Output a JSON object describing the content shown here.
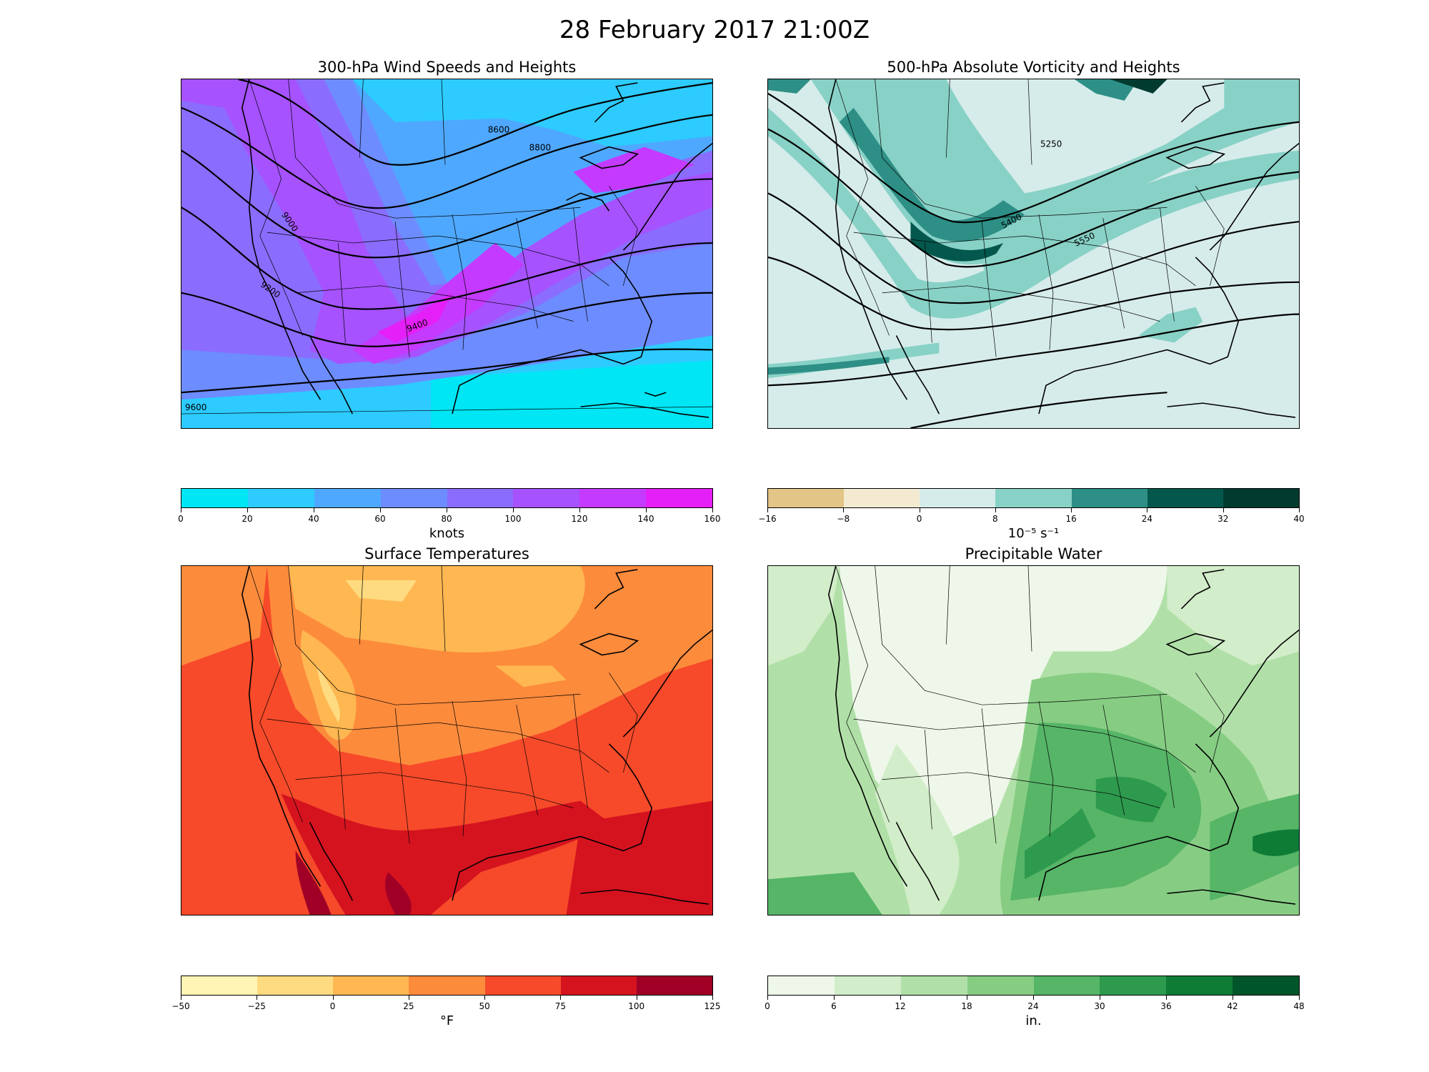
{
  "title": "28 February 2017 21:00Z",
  "panels": [
    {
      "title": "300-hPa Wind Speeds and Heights",
      "units": "knots",
      "ticks": [
        "0",
        "20",
        "40",
        "60",
        "80",
        "100",
        "120",
        "140",
        "160"
      ],
      "colors": [
        "#00e6f5",
        "#2dcbff",
        "#4fa8ff",
        "#6d8cff",
        "#8a6dff",
        "#a652ff",
        "#c43aff",
        "#e51ff7"
      ],
      "contour_labels": [
        "8600",
        "8800",
        "9000",
        "9200",
        "9400",
        "9600"
      ]
    },
    {
      "title": "500-hPa Absolute Vorticity and Heights",
      "units": "10⁻⁵ s⁻¹",
      "ticks": [
        "−16",
        "−8",
        "0",
        "8",
        "16",
        "24",
        "32",
        "40"
      ],
      "colors": [
        "#e2c587",
        "#f4ead2",
        "#d6ecea",
        "#88d1c6",
        "#2e8f86",
        "#04574c",
        "#013b30"
      ],
      "contour_labels": [
        "5250",
        "5400",
        "5550"
      ]
    },
    {
      "title": "Surface Temperatures",
      "units": "°F",
      "ticks": [
        "−50",
        "−25",
        "0",
        "25",
        "50",
        "75",
        "100",
        "125"
      ],
      "colors": [
        "#fff4b3",
        "#fedb80",
        "#feb751",
        "#fd8b3c",
        "#f64a2a",
        "#d5131f",
        "#a00026"
      ],
      "contour_labels": []
    },
    {
      "title": "Precipitable Water",
      "units": "in.",
      "ticks": [
        "0",
        "6",
        "12",
        "18",
        "24",
        "30",
        "36",
        "42",
        "48"
      ],
      "colors": [
        "#eef7e9",
        "#d2edc9",
        "#b0e0a7",
        "#86cd83",
        "#56b567",
        "#2e9a4e",
        "#0f7c36",
        "#00562a"
      ],
      "contour_labels": []
    }
  ]
}
